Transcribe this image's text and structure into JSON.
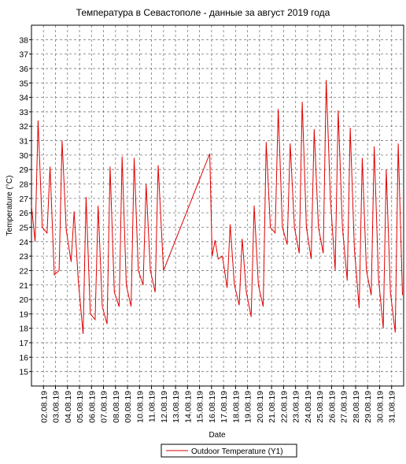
{
  "chart_data": {
    "type": "line",
    "title": "Температура в Севастополе - данные за август 2019 года",
    "xlabel": "Date",
    "ylabel": "Temperature (°C)",
    "ylim": [
      14,
      39
    ],
    "yticks": [
      15,
      16,
      17,
      18,
      19,
      20,
      21,
      22,
      23,
      24,
      25,
      26,
      27,
      28,
      29,
      30,
      31,
      32,
      33,
      34,
      35,
      36,
      37,
      38
    ],
    "x_range": [
      1,
      32
    ],
    "x_tick_labels": [
      "02.08.19",
      "03.08.19",
      "04.08.19",
      "05.08.19",
      "06.08.19",
      "07.08.19",
      "08.08.19",
      "09.08.19",
      "10.08.19",
      "11.08.19",
      "12.08.19",
      "13.08.19",
      "14.08.19",
      "15.08.19",
      "16.08.19",
      "17.08.19",
      "18.08.19",
      "19.08.19",
      "20.08.19",
      "21.08.19",
      "22.08.19",
      "23.08.19",
      "24.08.19",
      "25.08.19",
      "26.08.19",
      "27.08.19",
      "28.08.19",
      "29.08.19",
      "30.08.19",
      "31.08.19"
    ],
    "grid": true,
    "legend_position": "bottom-center",
    "series": [
      {
        "name": "Outdoor Temperature (Y1)",
        "color": "#e00000",
        "x": [
          1.0,
          1.3,
          1.55,
          1.9,
          2.3,
          2.55,
          2.9,
          3.3,
          3.55,
          3.9,
          4.3,
          4.55,
          4.9,
          5.3,
          5.55,
          5.9,
          6.3,
          6.55,
          6.9,
          7.3,
          7.55,
          7.9,
          8.3,
          8.55,
          8.9,
          9.3,
          9.55,
          9.9,
          10.3,
          10.55,
          10.9,
          11.3,
          11.55,
          12.0,
          15.85,
          16.05,
          16.3,
          16.55,
          16.9,
          17.3,
          17.55,
          17.9,
          18.3,
          18.55,
          18.9,
          19.3,
          19.55,
          19.9,
          20.3,
          20.55,
          20.9,
          21.3,
          21.55,
          21.9,
          22.3,
          22.55,
          22.9,
          23.3,
          23.55,
          23.9,
          24.3,
          24.55,
          24.9,
          25.3,
          25.55,
          25.9,
          26.3,
          26.55,
          26.9,
          27.3,
          27.55,
          27.9,
          28.3,
          28.55,
          28.9,
          29.3,
          29.55,
          29.9,
          30.3,
          30.55,
          30.9,
          31.3,
          31.55,
          31.9
        ],
        "y": [
          26.5,
          24.0,
          32.4,
          25.0,
          24.6,
          29.2,
          21.7,
          22.0,
          31.0,
          24.8,
          22.6,
          26.1,
          21.3,
          17.6,
          27.1,
          19.0,
          18.6,
          26.5,
          19.5,
          18.3,
          29.2,
          20.5,
          19.5,
          29.9,
          21.0,
          19.5,
          29.8,
          22.0,
          21.0,
          28.0,
          22.0,
          20.5,
          29.3,
          22.0,
          30.1,
          23.0,
          24.1,
          22.8,
          23.0,
          20.8,
          25.2,
          21.0,
          19.6,
          24.2,
          20.5,
          18.8,
          26.5,
          21.0,
          19.5,
          30.9,
          25.0,
          24.6,
          33.2,
          25.0,
          23.8,
          30.8,
          25.0,
          23.2,
          33.7,
          25.0,
          22.8,
          31.8,
          25.0,
          23.2,
          35.2,
          27.0,
          22.0,
          33.1,
          25.0,
          21.3,
          31.9,
          23.5,
          19.4,
          29.8,
          22.0,
          20.3,
          30.6,
          21.5,
          18.0,
          29.0,
          20.5,
          17.7,
          30.8,
          20.3
        ]
      }
    ]
  }
}
